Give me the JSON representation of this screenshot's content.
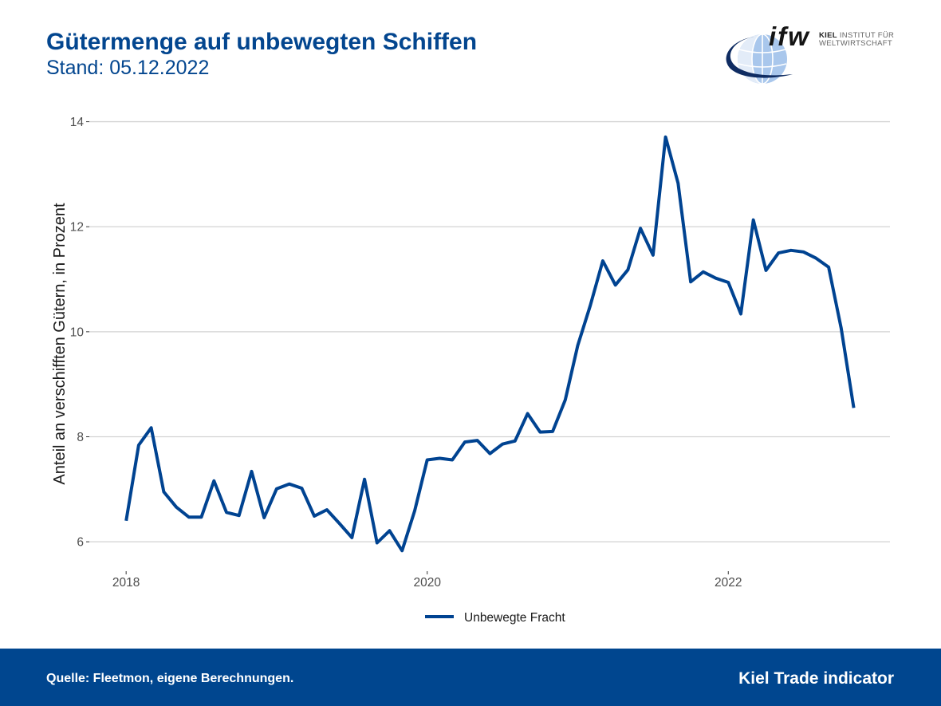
{
  "logo": {
    "mark": "ifw",
    "name_bold": "KIEL",
    "name_rest": "INSTITUT FÜR",
    "line2": "WELTWIRTSCHAFT"
  },
  "colors": {
    "brand_blue": "#03468f",
    "series": "#004391",
    "grid": "#d2d2d2",
    "footer": "#00468f",
    "axis_text": "#4d4d4d"
  },
  "chart_data": {
    "type": "line",
    "title": "Gütermenge auf unbewegten Schiffen",
    "subtitle": "Stand: 05.12.2022",
    "ylabel": "Anteil an verschifften Gütern, in Prozent",
    "x_ticks": [
      "2018",
      "2020",
      "2022"
    ],
    "y_ticks": [
      6,
      8,
      10,
      12,
      14
    ],
    "xlim": [
      "2017-10-03",
      "2023-01-28"
    ],
    "ylim": [
      5.44,
      14.1
    ],
    "grid": {
      "horizontal": true,
      "vertical": false
    },
    "legend_position": "bottom",
    "series": [
      {
        "name": "Unbewegte Fracht",
        "x": [
          "2018-01",
          "2018-02",
          "2018-03",
          "2018-04",
          "2018-05",
          "2018-06",
          "2018-07",
          "2018-08",
          "2018-09",
          "2018-10",
          "2018-11",
          "2018-12",
          "2019-01",
          "2019-02",
          "2019-03",
          "2019-04",
          "2019-05",
          "2019-06",
          "2019-07",
          "2019-08",
          "2019-09",
          "2019-10",
          "2019-11",
          "2019-12",
          "2020-01",
          "2020-02",
          "2020-03",
          "2020-04",
          "2020-05",
          "2020-06",
          "2020-07",
          "2020-08",
          "2020-09",
          "2020-10",
          "2020-11",
          "2020-12",
          "2021-01",
          "2021-02",
          "2021-03",
          "2021-04",
          "2021-05",
          "2021-06",
          "2021-07",
          "2021-08",
          "2021-09",
          "2021-10",
          "2021-11",
          "2021-12",
          "2022-01",
          "2022-02",
          "2022-03",
          "2022-04",
          "2022-05",
          "2022-06",
          "2022-07",
          "2022-08",
          "2022-09",
          "2022-10",
          "2022-11"
        ],
        "values": [
          6.4,
          7.84,
          8.17,
          6.95,
          6.66,
          6.47,
          6.47,
          7.16,
          6.56,
          6.5,
          7.34,
          6.46,
          7.01,
          7.1,
          7.02,
          6.49,
          6.61,
          6.35,
          6.08,
          7.19,
          5.98,
          6.21,
          5.83,
          6.59,
          7.56,
          7.59,
          7.56,
          7.9,
          7.93,
          7.68,
          7.86,
          7.92,
          8.44,
          8.09,
          8.1,
          8.7,
          9.74,
          10.5,
          11.35,
          10.89,
          11.18,
          11.97,
          11.46,
          13.71,
          12.83,
          10.95,
          11.14,
          11.02,
          10.94,
          10.34,
          12.13,
          11.17,
          11.5,
          11.55,
          11.52,
          11.4,
          11.23,
          10.07,
          8.55
        ]
      }
    ]
  },
  "footer": {
    "source": "Quelle: Fleetmon, eigene Berechnungen.",
    "brand": "Kiel Trade indicator"
  }
}
